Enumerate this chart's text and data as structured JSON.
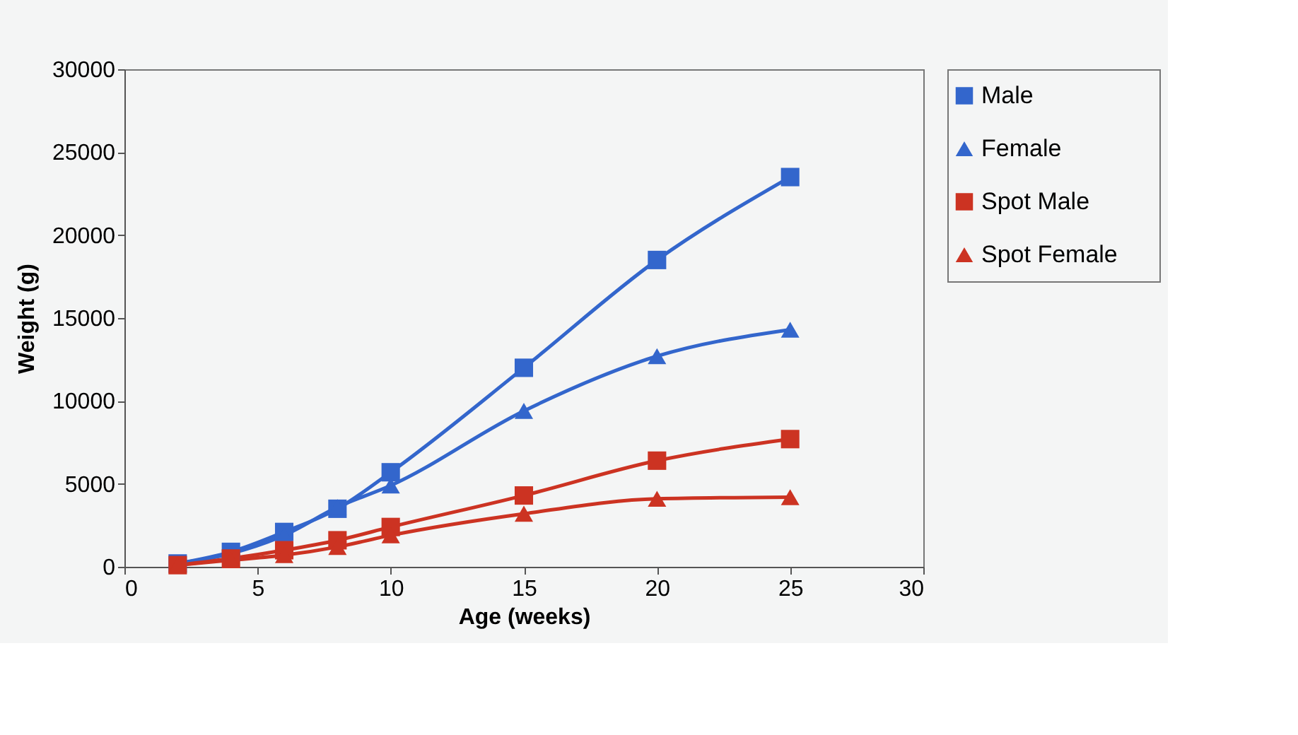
{
  "chart_data": {
    "type": "line",
    "xlabel": "Age (weeks)",
    "ylabel": "Weight (g)",
    "x": [
      2,
      4,
      6,
      8,
      10,
      15,
      20,
      25
    ],
    "xlim": [
      0,
      30
    ],
    "xticks": [
      0,
      5,
      10,
      15,
      20,
      25,
      30
    ],
    "ylim": [
      0,
      30000
    ],
    "yticks": [
      0,
      5000,
      10000,
      15000,
      20000,
      25000,
      30000
    ],
    "grid": false,
    "legend": "right",
    "line_style": "solid",
    "series": [
      {
        "name": "Male",
        "color": "#3366cc",
        "marker": "square",
        "values": [
          200,
          900,
          2100,
          3500,
          5700,
          12000,
          18500,
          23500
        ]
      },
      {
        "name": "Female",
        "color": "#3366cc",
        "marker": "triangle",
        "values": [
          200,
          800,
          1900,
          3600,
          4900,
          9400,
          12700,
          14300
        ]
      },
      {
        "name": "Spot Male",
        "color": "#cc3322",
        "marker": "square",
        "values": [
          100,
          500,
          1000,
          1600,
          2400,
          4300,
          6400,
          7700
        ]
      },
      {
        "name": "Spot Female",
        "color": "#cc3322",
        "marker": "triangle",
        "values": [
          100,
          400,
          700,
          1200,
          1900,
          3200,
          4100,
          4200
        ]
      }
    ]
  }
}
